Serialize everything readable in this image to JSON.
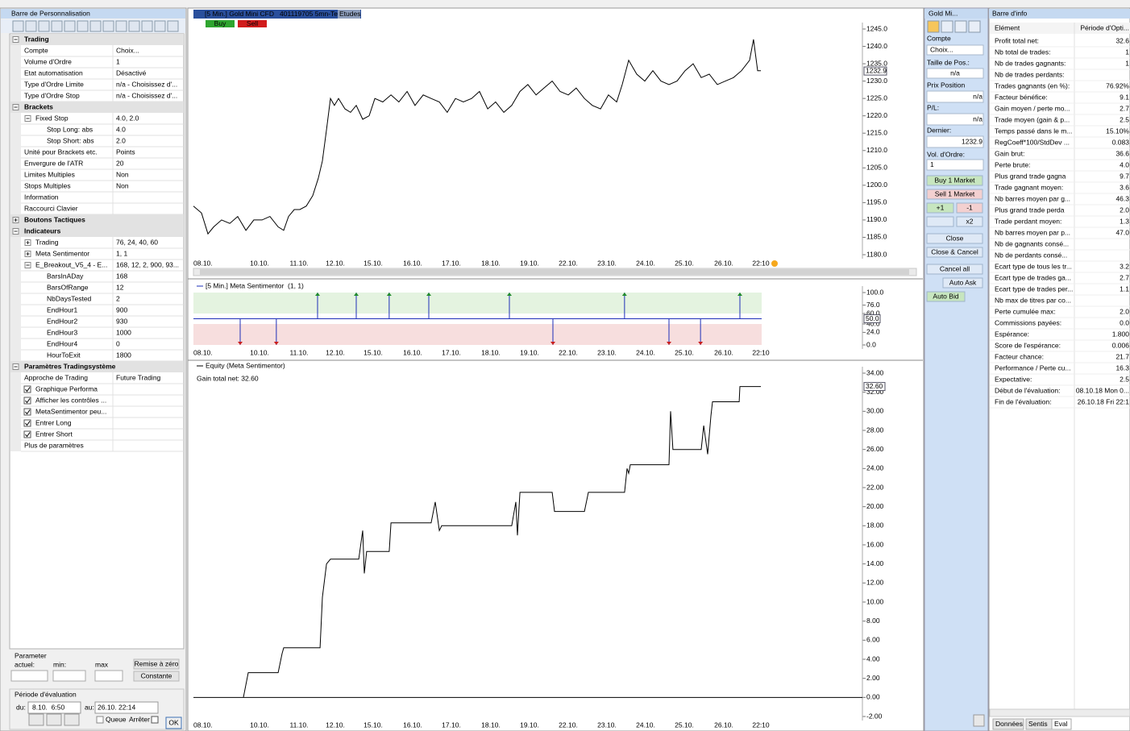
{
  "customization_bar": {
    "title": "Barre de Personnalisation",
    "rows": [
      [
        "Trading"
      ],
      [
        "Compte",
        "Choix..."
      ],
      [
        "Volume d'Ordre",
        "1"
      ],
      [
        "Etat automatisation",
        "Désactivé"
      ],
      [
        "Type d'Ordre Limite",
        "n/a - Choisissez d'..."
      ],
      [
        "Type d'Ordre Stop",
        "n/a - Choisissez d'..."
      ],
      [
        "Brackets"
      ],
      [
        "Fixed Stop",
        "4.0, 2.0"
      ],
      [
        "Stop Long: abs",
        "4.0"
      ],
      [
        "Stop Short: abs",
        "2.0"
      ],
      [
        "Unité pour Brackets etc.",
        "Points"
      ],
      [
        "Envergure de l'ATR",
        "20"
      ],
      [
        "Limites Multiples",
        "Non"
      ],
      [
        "Stops Multiples",
        "Non"
      ],
      [
        "Information"
      ],
      [
        "Raccourci Clavier"
      ],
      [
        "Boutons Tactiques"
      ],
      [
        "Indicateurs"
      ],
      [
        "Trading",
        "76, 24, 40, 60"
      ],
      [
        "Meta Sentimentor",
        "1, 1"
      ],
      [
        "E_Breakout_V5_4 - E...",
        "168, 12, 2, 900, 93..."
      ],
      [
        "BarsInADay",
        "168"
      ],
      [
        "BarsOfRange",
        "12"
      ],
      [
        "NbDaysTested",
        "2"
      ],
      [
        "EndHour1",
        "900"
      ],
      [
        "EndHour2",
        "930"
      ],
      [
        "EndHour3",
        "1000"
      ],
      [
        "EndHour4",
        "0"
      ],
      [
        "HourToExit",
        "1800"
      ],
      [
        "Paramètres Tradingsystème"
      ],
      [
        "Approche de Trading",
        "Future Trading"
      ],
      [
        "Graphique Performa"
      ],
      [
        "Afficher les contrôles ..."
      ],
      [
        "MetaSentimentor peu..."
      ],
      [
        "Entrer Long"
      ],
      [
        "Entrer Short"
      ],
      [
        "Plus de paramètres"
      ]
    ],
    "parameter": {
      "title": "Parameter",
      "current": "actuel:",
      "min": "min:",
      "max": "max",
      "reset": "Remise à zéro",
      "constant": "Constante"
    },
    "evaluation": {
      "title": "Période d'évaluation",
      "from_label": "du:",
      "from": "8.10.  6:50",
      "to_label": "au:",
      "to": "26.10. 22:14",
      "queue": "Queue",
      "stop": "Arrêter",
      "ok": "OK"
    }
  },
  "dates": [
    "08.10.",
    "10.10.",
    "11.10.",
    "12.10.",
    "15.10.",
    "16.10.",
    "17.10.",
    "18.10.",
    "19.10.",
    "22.10.",
    "23.10.",
    "24.10.",
    "25.10.",
    "26.10.",
    "22:10"
  ],
  "price_chart": {
    "type": "line",
    "title": "[5 Min.] Gold Mini CFD   401119705 5mn-Test",
    "studies": "Etudes",
    "buy": "Buy",
    "sell": "Sell",
    "color": "#000000",
    "x": [
      0,
      35,
      63,
      88,
      122,
      158,
      192,
      228,
      262,
      298,
      332,
      368,
      392,
      413,
      438,
      462,
      490,
      518,
      542,
      560,
      578,
      595,
      612,
      630,
      658,
      682,
      707,
      735,
      763,
      788,
      822,
      858,
      892,
      928,
      962,
      998,
      1032,
      1068,
      1102,
      1138,
      1172,
      1208,
      1242,
      1278,
      1312,
      1348,
      1382,
      1418,
      1452,
      1488,
      1522,
      1558,
      1592,
      1628,
      1662,
      1698,
      1732,
      1768,
      1802,
      1838,
      1862,
      1890,
      1925,
      1960,
      1995,
      2030,
      2065,
      2100,
      2135,
      2170,
      2205,
      2240,
      2275,
      2310,
      2345,
      2380,
      2415,
      2432,
      2450,
      2464
    ],
    "values": [
      1194,
      1192,
      1186,
      1188,
      1190,
      1189,
      1191,
      1187,
      1190,
      1190,
      1191,
      1188,
      1187,
      1191,
      1193,
      1193,
      1194,
      1197,
      1202,
      1207,
      1216,
      1225,
      1223,
      1225,
      1222,
      1221,
      1223,
      1219,
      1220,
      1225,
      1224,
      1226,
      1224,
      1227,
      1223,
      1226,
      1225,
      1224,
      1221,
      1225,
      1224,
      1225,
      1227,
      1222,
      1224,
      1221,
      1223,
      1227,
      1229,
      1226,
      1228,
      1230,
      1227,
      1226,
      1228,
      1225,
      1223,
      1222,
      1226,
      1224,
      1229,
      1236,
      1232,
      1230,
      1233,
      1230,
      1229,
      1230,
      1233,
      1235,
      1231,
      1232,
      1229,
      1230,
      1231,
      1233,
      1236,
      1242,
      1233,
      1233
    ],
    "xlim": [
      0,
      2905
    ],
    "ylim": [
      1180,
      1245
    ],
    "yticks": [
      {
        "value": 1180,
        "label": "1180.0"
      },
      {
        "value": 1185,
        "label": "1185.0"
      },
      {
        "value": 1190,
        "label": "1190.0"
      },
      {
        "value": 1195,
        "label": "1195.0"
      },
      {
        "value": 1200,
        "label": "1200.0"
      },
      {
        "value": 1205,
        "label": "1205.0"
      },
      {
        "value": 1210,
        "label": "1210.0"
      },
      {
        "value": 1215,
        "label": "1215.0"
      },
      {
        "value": 1220,
        "label": "1220.0"
      },
      {
        "value": 1225,
        "label": "1225.0"
      },
      {
        "value": 1230,
        "label": "1230.0"
      },
      {
        "value": 1235,
        "label": "1235.0"
      },
      {
        "value": 1240,
        "label": "1240.0"
      },
      {
        "value": 1245,
        "label": "1245.0"
      }
    ],
    "last": 1232.9
  },
  "sentiment_chart": {
    "type": "spikes",
    "title": "[5 Min.] Meta Sentimentor  (1, 1)",
    "color": "#1e2fb8",
    "x": [
      203,
      360,
      539,
      707,
      850,
      1022,
      1372,
      1561,
      1872,
      2065,
      2202,
      2373
    ],
    "values": [
      0,
      0,
      100,
      100,
      100,
      100,
      100,
      0,
      100,
      0,
      0,
      100
    ],
    "xlim": [
      0,
      2905
    ],
    "ylim": [
      0,
      100
    ],
    "yticks": [
      {
        "value": 0,
        "label": "0.0"
      },
      {
        "value": 24,
        "label": "24.0"
      },
      {
        "value": 40,
        "label": "40.0"
      },
      {
        "value": 60,
        "label": "60.0"
      },
      {
        "value": 76,
        "label": "76.0"
      },
      {
        "value": 100,
        "label": "100.0"
      }
    ],
    "last": {
      "value": 50,
      "label": "50.0"
    }
  },
  "equity_chart": {
    "type": "line",
    "title": "Equity (Meta Sentimentor)",
    "subtitle": "Gain total net: 32.60",
    "color": "#000000",
    "x": [
      217,
      238,
      368,
      385,
      392,
      550,
      560,
      578,
      595,
      718,
      735,
      742,
      752,
      850,
      858,
      1032,
      1050,
      1068,
      1078,
      1382,
      1400,
      1407,
      1418,
      1558,
      1568,
      1698,
      1715,
      1872,
      1883,
      1890,
      1897,
      2065,
      2072,
      2082,
      2205,
      2216,
      2233,
      2247,
      2254,
      2370,
      2373,
      2464
    ],
    "values": [
      0,
      2.6,
      2.6,
      4.6,
      5.2,
      5.2,
      10.5,
      14,
      14.5,
      14.5,
      17.5,
      13,
      15.3,
      15.3,
      18.3,
      18.3,
      20.5,
      17.5,
      18,
      18,
      20.5,
      17,
      21.5,
      21.5,
      19.5,
      19.5,
      21.5,
      21.5,
      24,
      23.5,
      24.4,
      24.4,
      30,
      26,
      26,
      28.5,
      25.5,
      29.5,
      31,
      31,
      32.6,
      32.6
    ],
    "xlim": [
      0,
      2905
    ],
    "ylim": [
      -2,
      34
    ],
    "yticks": [
      {
        "value": -2,
        "label": "-2.00"
      },
      {
        "value": 0,
        "label": "0.00"
      },
      {
        "value": 2,
        "label": "2.00"
      },
      {
        "value": 4,
        "label": "4.00"
      },
      {
        "value": 6,
        "label": "6.00"
      },
      {
        "value": 8,
        "label": "8.00"
      },
      {
        "value": 10,
        "label": "10.00"
      },
      {
        "value": 12,
        "label": "12.00"
      },
      {
        "value": 14,
        "label": "14.00"
      },
      {
        "value": 16,
        "label": "16.00"
      },
      {
        "value": 18,
        "label": "18.00"
      },
      {
        "value": 20,
        "label": "20.00"
      },
      {
        "value": 22,
        "label": "22.00"
      },
      {
        "value": 24,
        "label": "24.00"
      },
      {
        "value": 26,
        "label": "26.00"
      },
      {
        "value": 28,
        "label": "28.00"
      },
      {
        "value": 30,
        "label": "30.00"
      },
      {
        "value": 32,
        "label": "32.00"
      },
      {
        "value": 34,
        "label": "34.00"
      }
    ],
    "last": {
      "value": 32.6,
      "label": "32.60"
    }
  },
  "order_panel": {
    "title": "Gold Mi...",
    "account_label": "Compte",
    "account": "Choix...",
    "position_size_label": "Taille de Pos.:",
    "position_size": "n/a",
    "position_price_label": "Prix Position",
    "position_price": "n/a",
    "pl_label": "P/L:",
    "pl": "n/a",
    "last_label": "Dernier:",
    "last": "1232.9",
    "volume_label": "Vol. d'Ordre:",
    "volume": "1",
    "buttons": [
      "Buy 1 Market",
      "Sell 1 Market",
      "+1",
      "-1",
      "x2",
      "Close",
      "Close & Cancel",
      "Cancel all",
      "Auto Ask",
      "Auto Bid"
    ]
  },
  "info_bar": {
    "title": "Barre d'info",
    "header": [
      "Elément",
      "Période d'Opti..."
    ],
    "rows": [
      [
        "Profit total net:",
        "32.6"
      ],
      [
        "Nb total de trades:",
        "1"
      ],
      [
        "Nb de trades gagnants:",
        "1"
      ],
      [
        "Nb de trades perdants:"
      ],
      [
        "Trades gagnants (en %):",
        "76.92%"
      ],
      [
        "Facteur bénéfice:",
        "9.1"
      ],
      [
        "Gain moyen / perte mo...",
        "2.7"
      ],
      [
        "Trade moyen (gain & p...",
        "2.5"
      ],
      [
        "Temps passé dans le m...",
        "15.10%"
      ],
      [
        "RegCoeff*100/StdDev ...",
        "0.083"
      ],
      [
        "Gain brut:",
        "36.6"
      ],
      [
        "Perte brute:",
        "4.0"
      ],
      [
        "Plus grand trade gagna",
        "9.7"
      ],
      [
        "Trade gagnant moyen:",
        "3.6"
      ],
      [
        "Nb barres moyen par g...",
        "46.3"
      ],
      [
        "Plus grand trade perda",
        "2.0"
      ],
      [
        "Trade perdant moyen:",
        "1.3"
      ],
      [
        "Nb barres moyen par p...",
        "47.0"
      ],
      [
        "Nb de gagnants consé..."
      ],
      [
        "Nb de perdants consé..."
      ],
      [
        "Ecart type de tous les tr...",
        "3.2"
      ],
      [
        "Ecart type de trades ga...",
        "2.7"
      ],
      [
        "Ecart type de trades per...",
        "1.1"
      ],
      [
        "Nb max de titres par co..."
      ],
      [
        "Perte cumulée max:",
        "2.0"
      ],
      [
        "Commissions payées:",
        "0.0"
      ],
      [
        "Espérance:",
        "1.800"
      ],
      [
        "Score de l'espérance:",
        "0.006"
      ],
      [
        "Facteur chance:",
        "21.7"
      ],
      [
        "Performance / Perte cu...",
        "16.3"
      ],
      [
        "Expectative:",
        "2.5"
      ],
      [
        "Début de l'évaluation:",
        "08.10.18 Mon 0..."
      ],
      [
        "Fin de l'évaluation:",
        "26.10.18 Fri 22:1"
      ]
    ],
    "tabs": [
      "Données",
      "Sentis",
      "Eval"
    ]
  }
}
